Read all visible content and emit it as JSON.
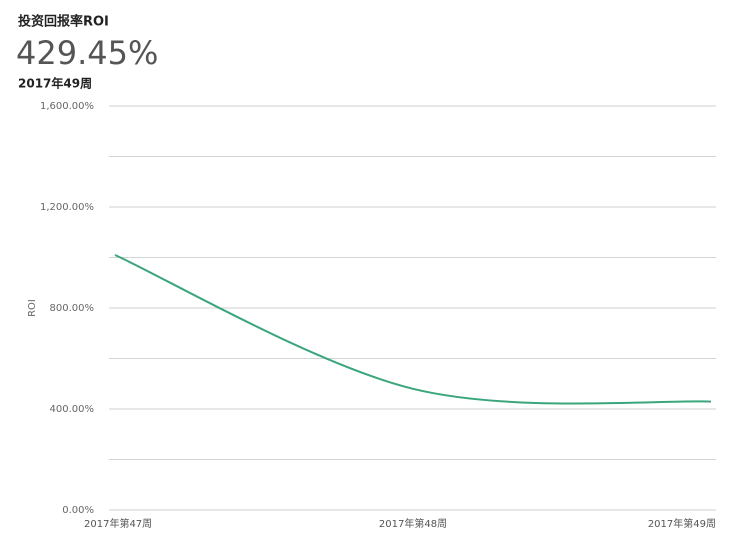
{
  "chart_data": {
    "type": "line",
    "title": "投资回报率ROI",
    "headline": "429.45%",
    "subtitle": "2017年49周",
    "y_label": "ROI",
    "categories": [
      "2017年第47周",
      "2017年第48周",
      "2017年第49周"
    ],
    "series": [
      {
        "name": "ROI",
        "color": "#3ba67c",
        "values": [
          1010,
          480,
          429.45
        ]
      }
    ],
    "ylim": [
      0,
      1600
    ],
    "yticks": [
      {
        "value": 0,
        "label": "0.00%"
      },
      {
        "value": 400,
        "label": "400.00%"
      },
      {
        "value": 800,
        "label": "800.00%"
      },
      {
        "value": 1200,
        "label": "1,200.00%"
      },
      {
        "value": 1600,
        "label": "1,600.00%"
      }
    ],
    "minor_yticks": [
      200,
      600,
      1000,
      1400
    ],
    "grid": true
  }
}
